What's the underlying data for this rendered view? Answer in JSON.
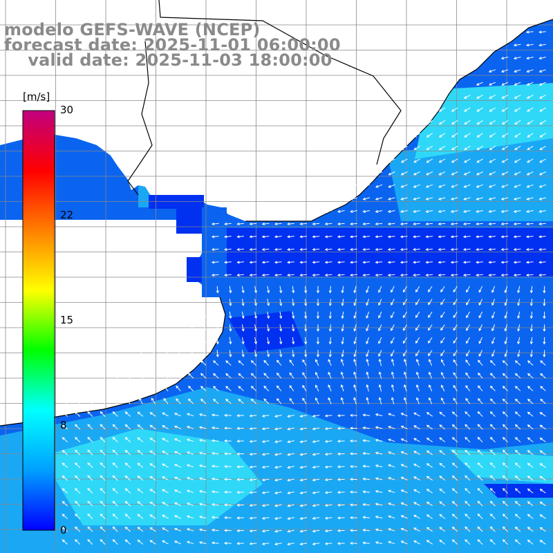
{
  "title": {
    "model": "modelo GEFS-WAVE (NCEP)",
    "forecast": "forecast date: 2025-11-01 06:00:00",
    "valid": "valid date: 2025-11-03 18:00:00"
  },
  "colorbar": {
    "unit": "[m/s]",
    "ticks": [
      "30",
      "22",
      "15",
      "8",
      "0"
    ],
    "stops": [
      "#0000ff",
      "#00a0ff",
      "#00ffff",
      "#00ff00",
      "#ffff00",
      "#ff8000",
      "#ff0000",
      "#c00080"
    ]
  },
  "map": {
    "ocean_colors": {
      "deep": "#0030f0",
      "mid": "#0a64f0",
      "light": "#1aa8f5",
      "cyan": "#30d8f8"
    },
    "land_color": "#ffffff",
    "grid_color": "#888888",
    "coast_color": "#000000",
    "arrow_color": "#ffffff"
  }
}
